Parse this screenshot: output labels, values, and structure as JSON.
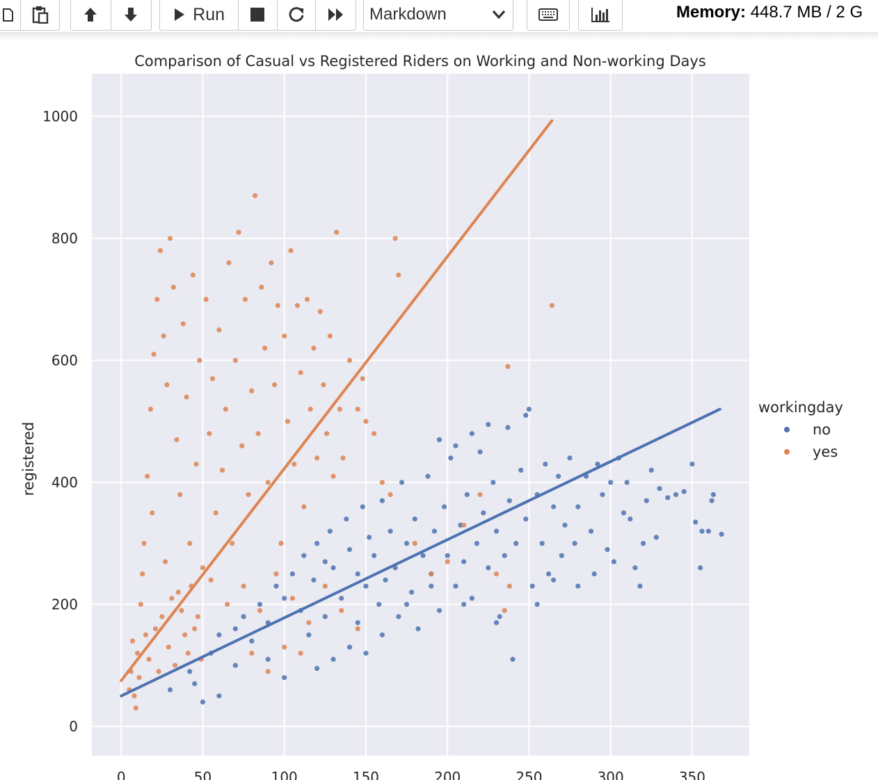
{
  "toolbar": {
    "buttons": {
      "copy": "copy-icon",
      "paste": "paste-icon",
      "move_up": "arrow-up-icon",
      "move_down": "arrow-down-icon",
      "run_label": "Run",
      "stop": "stop-icon",
      "restart": "restart-icon",
      "run_all": "fast-forward-icon",
      "keyboard": "keyboard-icon",
      "chart": "bar-chart-icon"
    },
    "cell_type": "Markdown",
    "memory_label": "Memory:",
    "memory_value": "448.7 MB / 2 G"
  },
  "colors": {
    "no": "#4c72b0",
    "yes": "#dd8452",
    "plot_bg": "#eaeaf2",
    "grid": "#ffffff"
  },
  "chart_data": {
    "type": "scatter",
    "title": "Comparison of Casual vs Registered Riders on Working and Non-working Days",
    "xlabel": "",
    "ylabel": "registered",
    "xlim": [
      -18,
      385
    ],
    "ylim": [
      -48,
      1070
    ],
    "xticks": [
      "0",
      "50",
      "100",
      "150",
      "200",
      "250",
      "300",
      "350"
    ],
    "xtick_values": [
      0,
      50,
      100,
      150,
      200,
      250,
      300,
      350
    ],
    "yticks": [
      "0",
      "200",
      "400",
      "600",
      "800",
      "1000"
    ],
    "ytick_values": [
      0,
      200,
      400,
      600,
      800,
      1000
    ],
    "grid": true,
    "legend_title": "workingday",
    "legend_position": "right",
    "series": [
      {
        "name": "no",
        "color": "#4c72b0",
        "regression": {
          "x": [
            0,
            367
          ],
          "y": [
            50,
            520
          ]
        },
        "points": [
          [
            30,
            60
          ],
          [
            42,
            90
          ],
          [
            55,
            120
          ],
          [
            60,
            150
          ],
          [
            70,
            160
          ],
          [
            75,
            180
          ],
          [
            80,
            140
          ],
          [
            85,
            200
          ],
          [
            90,
            170
          ],
          [
            95,
            230
          ],
          [
            100,
            210
          ],
          [
            105,
            250
          ],
          [
            110,
            190
          ],
          [
            112,
            280
          ],
          [
            118,
            240
          ],
          [
            120,
            300
          ],
          [
            125,
            270
          ],
          [
            128,
            320
          ],
          [
            130,
            260
          ],
          [
            135,
            210
          ],
          [
            138,
            340
          ],
          [
            140,
            290
          ],
          [
            145,
            250
          ],
          [
            148,
            360
          ],
          [
            150,
            230
          ],
          [
            152,
            310
          ],
          [
            155,
            280
          ],
          [
            158,
            200
          ],
          [
            160,
            370
          ],
          [
            162,
            240
          ],
          [
            165,
            320
          ],
          [
            168,
            260
          ],
          [
            170,
            180
          ],
          [
            172,
            400
          ],
          [
            175,
            300
          ],
          [
            178,
            220
          ],
          [
            180,
            340
          ],
          [
            182,
            160
          ],
          [
            185,
            280
          ],
          [
            188,
            410
          ],
          [
            190,
            250
          ],
          [
            192,
            320
          ],
          [
            195,
            190
          ],
          [
            198,
            360
          ],
          [
            200,
            280
          ],
          [
            202,
            440
          ],
          [
            205,
            230
          ],
          [
            208,
            330
          ],
          [
            210,
            270
          ],
          [
            212,
            380
          ],
          [
            215,
            210
          ],
          [
            218,
            300
          ],
          [
            220,
            450
          ],
          [
            222,
            350
          ],
          [
            225,
            260
          ],
          [
            228,
            400
          ],
          [
            230,
            320
          ],
          [
            232,
            180
          ],
          [
            235,
            280
          ],
          [
            238,
            370
          ],
          [
            240,
            110
          ],
          [
            242,
            300
          ],
          [
            245,
            420
          ],
          [
            248,
            340
          ],
          [
            250,
            520
          ],
          [
            252,
            230
          ],
          [
            255,
            380
          ],
          [
            258,
            300
          ],
          [
            260,
            430
          ],
          [
            262,
            250
          ],
          [
            265,
            360
          ],
          [
            268,
            410
          ],
          [
            270,
            280
          ],
          [
            272,
            330
          ],
          [
            275,
            440
          ],
          [
            278,
            300
          ],
          [
            280,
            360
          ],
          [
            285,
            410
          ],
          [
            288,
            320
          ],
          [
            290,
            250
          ],
          [
            292,
            430
          ],
          [
            295,
            380
          ],
          [
            298,
            290
          ],
          [
            300,
            400
          ],
          [
            302,
            270
          ],
          [
            305,
            440
          ],
          [
            308,
            350
          ],
          [
            310,
            400
          ],
          [
            312,
            340
          ],
          [
            315,
            260
          ],
          [
            318,
            230
          ],
          [
            320,
            300
          ],
          [
            322,
            370
          ],
          [
            325,
            420
          ],
          [
            328,
            310
          ],
          [
            330,
            390
          ],
          [
            335,
            375
          ],
          [
            340,
            380
          ],
          [
            345,
            385
          ],
          [
            350,
            430
          ],
          [
            352,
            335
          ],
          [
            355,
            260
          ],
          [
            356,
            320
          ],
          [
            360,
            320
          ],
          [
            362,
            370
          ],
          [
            363,
            380
          ],
          [
            368,
            315
          ],
          [
            195,
            470
          ],
          [
            205,
            460
          ],
          [
            215,
            480
          ],
          [
            225,
            495
          ],
          [
            237,
            490
          ],
          [
            248,
            510
          ],
          [
            160,
            150
          ],
          [
            150,
            120
          ],
          [
            140,
            130
          ],
          [
            130,
            110
          ],
          [
            120,
            95
          ],
          [
            100,
            80
          ],
          [
            90,
            110
          ],
          [
            70,
            100
          ],
          [
            60,
            50
          ],
          [
            50,
            40
          ],
          [
            45,
            70
          ],
          [
            115,
            150
          ],
          [
            125,
            180
          ],
          [
            145,
            170
          ],
          [
            175,
            200
          ],
          [
            190,
            230
          ],
          [
            210,
            200
          ],
          [
            230,
            170
          ],
          [
            255,
            200
          ],
          [
            265,
            240
          ],
          [
            280,
            230
          ]
        ]
      },
      {
        "name": "yes",
        "color": "#dd8452",
        "regression": {
          "x": [
            0,
            264
          ],
          "y": [
            75,
            993
          ]
        },
        "points": [
          [
            8,
            50
          ],
          [
            10,
            120
          ],
          [
            12,
            200
          ],
          [
            14,
            300
          ],
          [
            16,
            410
          ],
          [
            18,
            520
          ],
          [
            20,
            610
          ],
          [
            22,
            700
          ],
          [
            24,
            780
          ],
          [
            26,
            640
          ],
          [
            28,
            560
          ],
          [
            30,
            800
          ],
          [
            32,
            720
          ],
          [
            34,
            470
          ],
          [
            36,
            380
          ],
          [
            38,
            660
          ],
          [
            40,
            540
          ],
          [
            42,
            300
          ],
          [
            44,
            740
          ],
          [
            46,
            430
          ],
          [
            48,
            600
          ],
          [
            50,
            260
          ],
          [
            52,
            700
          ],
          [
            54,
            480
          ],
          [
            56,
            570
          ],
          [
            58,
            350
          ],
          [
            60,
            650
          ],
          [
            62,
            420
          ],
          [
            64,
            520
          ],
          [
            66,
            760
          ],
          [
            68,
            300
          ],
          [
            70,
            600
          ],
          [
            72,
            810
          ],
          [
            74,
            460
          ],
          [
            76,
            700
          ],
          [
            78,
            380
          ],
          [
            80,
            550
          ],
          [
            82,
            870
          ],
          [
            84,
            480
          ],
          [
            86,
            720
          ],
          [
            88,
            620
          ],
          [
            90,
            400
          ],
          [
            92,
            760
          ],
          [
            94,
            560
          ],
          [
            96,
            690
          ],
          [
            98,
            300
          ],
          [
            100,
            640
          ],
          [
            102,
            500
          ],
          [
            104,
            780
          ],
          [
            106,
            430
          ],
          [
            108,
            690
          ],
          [
            110,
            580
          ],
          [
            112,
            360
          ],
          [
            114,
            700
          ],
          [
            116,
            520
          ],
          [
            118,
            620
          ],
          [
            120,
            440
          ],
          [
            122,
            680
          ],
          [
            124,
            560
          ],
          [
            126,
            480
          ],
          [
            128,
            640
          ],
          [
            130,
            410
          ],
          [
            132,
            810
          ],
          [
            134,
            520
          ],
          [
            136,
            440
          ],
          [
            140,
            600
          ],
          [
            145,
            520
          ],
          [
            148,
            570
          ],
          [
            150,
            500
          ],
          [
            155,
            480
          ],
          [
            160,
            400
          ],
          [
            165,
            380
          ],
          [
            168,
            800
          ],
          [
            170,
            740
          ],
          [
            180,
            300
          ],
          [
            190,
            250
          ],
          [
            200,
            270
          ],
          [
            210,
            330
          ],
          [
            220,
            380
          ],
          [
            230,
            250
          ],
          [
            235,
            190
          ],
          [
            238,
            230
          ],
          [
            264,
            690
          ],
          [
            237,
            590
          ],
          [
            15,
            150
          ],
          [
            25,
            180
          ],
          [
            35,
            220
          ],
          [
            45,
            160
          ],
          [
            55,
            240
          ],
          [
            65,
            200
          ],
          [
            75,
            230
          ],
          [
            85,
            190
          ],
          [
            95,
            250
          ],
          [
            105,
            210
          ],
          [
            115,
            170
          ],
          [
            125,
            230
          ],
          [
            135,
            190
          ],
          [
            145,
            160
          ],
          [
            5,
            60
          ],
          [
            6,
            90
          ],
          [
            7,
            140
          ],
          [
            9,
            30
          ],
          [
            11,
            80
          ],
          [
            13,
            250
          ],
          [
            17,
            110
          ],
          [
            19,
            350
          ],
          [
            21,
            160
          ],
          [
            23,
            90
          ],
          [
            27,
            270
          ],
          [
            29,
            130
          ],
          [
            31,
            210
          ],
          [
            33,
            100
          ],
          [
            37,
            190
          ],
          [
            39,
            150
          ],
          [
            41,
            120
          ],
          [
            43,
            230
          ],
          [
            47,
            180
          ],
          [
            49,
            110
          ],
          [
            80,
            120
          ],
          [
            90,
            90
          ],
          [
            100,
            130
          ],
          [
            110,
            120
          ]
        ]
      }
    ]
  }
}
